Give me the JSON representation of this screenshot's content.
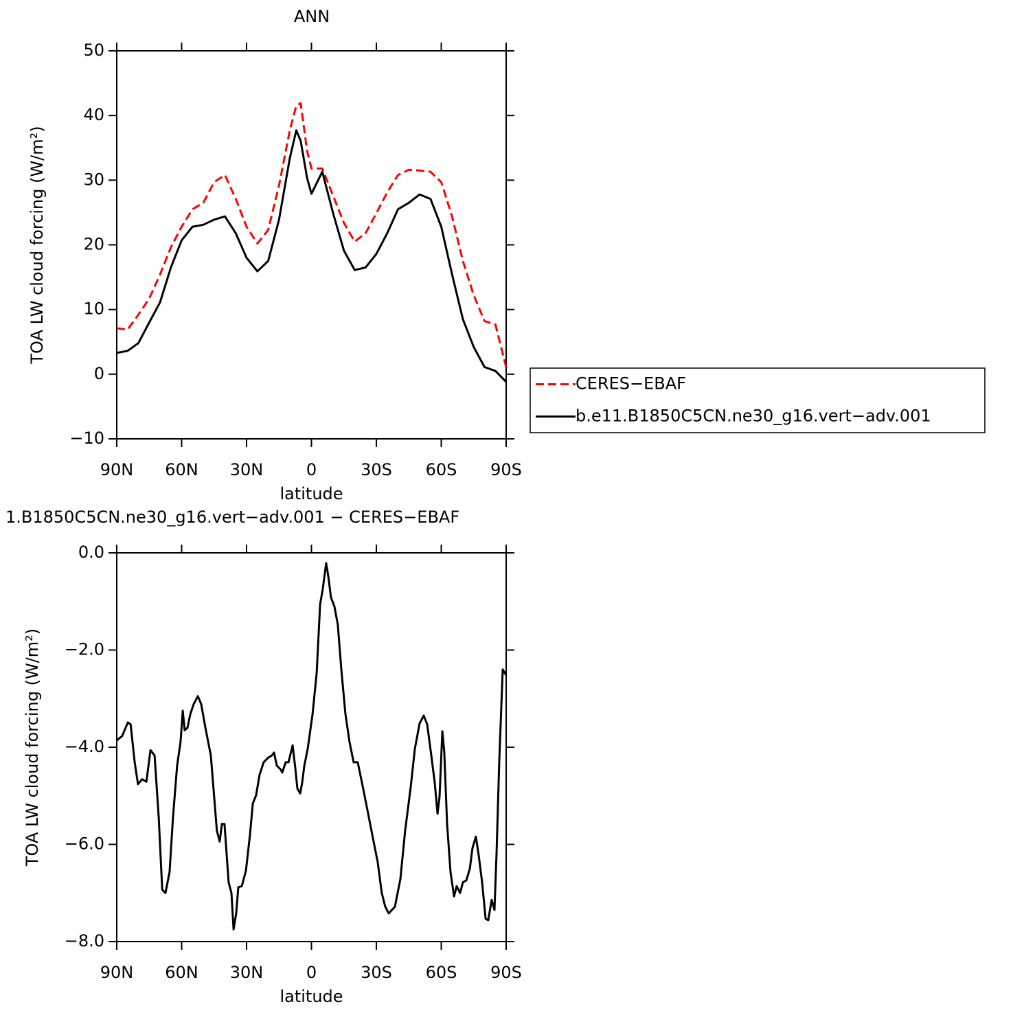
{
  "chart_data": [
    {
      "type": "line",
      "title": "ANN",
      "x_label": "latitude",
      "y_label": "TOA LW cloud forcing (W/m²)",
      "x": [
        90,
        85,
        80,
        75,
        70,
        65,
        60,
        55,
        50,
        45,
        40,
        35,
        30,
        25,
        20,
        15,
        10,
        7,
        5,
        2,
        0,
        -5,
        -10,
        -15,
        -20,
        -25,
        -30,
        -35,
        -40,
        -45,
        -50,
        -55,
        -60,
        -65,
        -70,
        -75,
        -80,
        -85,
        -90
      ],
      "series": [
        {
          "name": "CERES−EBAF",
          "color": "#ff0000",
          "dashed": true,
          "values": [
            7.1,
            6.9,
            9.2,
            11.7,
            15.4,
            19.6,
            22.8,
            25.5,
            26.5,
            29.7,
            30.8,
            27.1,
            22.8,
            20.2,
            22.3,
            29.2,
            37.7,
            41.5,
            41.9,
            34.5,
            31.8,
            31.8,
            27.6,
            23.4,
            20.5,
            21.8,
            24.9,
            28.1,
            30.8,
            31.6,
            31.5,
            31.3,
            29.7,
            24.4,
            17.5,
            12.2,
            8.2,
            7.7,
            1.1
          ]
        },
        {
          "name": "b.e11.B1850C5CN.ne30_g16.vert−adv.001",
          "color": "#000000",
          "dashed": false,
          "values": [
            3.3,
            3.6,
            4.8,
            8.0,
            11.1,
            16.5,
            20.7,
            22.8,
            23.1,
            23.9,
            24.4,
            21.8,
            18.0,
            15.9,
            17.5,
            23.9,
            33.4,
            37.7,
            36.1,
            30.3,
            27.9,
            31.3,
            24.9,
            19.1,
            16.1,
            16.5,
            18.6,
            21.8,
            25.5,
            26.5,
            27.8,
            27.1,
            22.8,
            15.4,
            8.5,
            4.2,
            1.1,
            0.5,
            -1.2
          ]
        }
      ],
      "xlim": [
        90,
        -90
      ],
      "xticks": [
        {
          "value": 90,
          "label": "90N"
        },
        {
          "value": 60,
          "label": "60N"
        },
        {
          "value": 30,
          "label": "30N"
        },
        0,
        {
          "value": -30,
          "label": "30S"
        },
        {
          "value": -60,
          "label": "60S"
        },
        {
          "value": -90,
          "label": "90S"
        }
      ],
      "ylim": [
        -10,
        50
      ],
      "yticks": [
        {
          "value": -10,
          "label": "−10"
        },
        0,
        10,
        20,
        30,
        40,
        50
      ],
      "legend": "right"
    },
    {
      "type": "line",
      "title": "1.B1850C5CN.ne30_g16.vert−adv.001 − CERES−EBAF",
      "x_label": "latitude",
      "y_label": "TOA LW cloud forcing (W/m²)",
      "x": [
        90,
        87.5,
        84.9,
        83.6,
        81.7,
        80.2,
        78.3,
        76.3,
        74.4,
        72.5,
        70.6,
        69.0,
        67.5,
        65.6,
        64.0,
        62.1,
        60.5,
        59.5,
        58.6,
        57.3,
        56.0,
        54.4,
        52.5,
        51.0,
        49.0,
        46.5,
        43.7,
        42.4,
        41.4,
        40.2,
        38.3,
        37.0,
        36.0,
        34.8,
        33.8,
        32.2,
        30.3,
        28.4,
        27.1,
        25.6,
        24.0,
        22.1,
        19.9,
        18.3,
        17.3,
        16.0,
        14.4,
        13.5,
        11.9,
        10.6,
        8.7,
        7.5,
        6.5,
        5.2,
        4.3,
        3.3,
        1.7,
        -0.5,
        -2.4,
        -4.0,
        -5.2,
        -6.8,
        -7.8,
        -9.0,
        -10.6,
        -12.2,
        -13.8,
        -15.7,
        -17.6,
        -19.5,
        -21.4,
        -23.7,
        -25.9,
        -28.4,
        -30.6,
        -32.5,
        -34.1,
        -35.7,
        -38.6,
        -41.1,
        -43.3,
        -45.9,
        -47.8,
        -50.0,
        -51.9,
        -53.5,
        -55.4,
        -57.0,
        -58.3,
        -59.2,
        -60.5,
        -61.4,
        -62.7,
        -64.3,
        -65.9,
        -67.1,
        -68.7,
        -70.0,
        -71.6,
        -73.2,
        -74.4,
        -76.0,
        -77.3,
        -78.9,
        -80.5,
        -81.7,
        -83.3,
        -84.6,
        -85.6,
        -86.8,
        -88.4,
        -90
      ],
      "values": [
        -3.86,
        -3.77,
        -3.49,
        -3.53,
        -4.31,
        -4.76,
        -4.66,
        -4.71,
        -4.06,
        -4.17,
        -5.44,
        -6.93,
        -7.0,
        -6.57,
        -5.44,
        -4.38,
        -3.89,
        -3.25,
        -3.65,
        -3.6,
        -3.32,
        -3.11,
        -2.95,
        -3.11,
        -3.6,
        -4.17,
        -5.72,
        -5.94,
        -5.58,
        -5.58,
        -6.78,
        -7.0,
        -7.75,
        -7.42,
        -6.88,
        -6.86,
        -6.54,
        -5.8,
        -5.16,
        -4.99,
        -4.57,
        -4.31,
        -4.21,
        -4.17,
        -4.11,
        -4.38,
        -4.45,
        -4.52,
        -4.31,
        -4.31,
        -3.96,
        -4.42,
        -4.85,
        -4.95,
        -4.73,
        -4.38,
        -4.03,
        -3.32,
        -2.47,
        -1.06,
        -0.75,
        -0.21,
        -0.49,
        -0.92,
        -1.1,
        -1.48,
        -2.4,
        -3.32,
        -3.89,
        -4.31,
        -4.31,
        -4.81,
        -5.3,
        -5.87,
        -6.36,
        -7.0,
        -7.28,
        -7.42,
        -7.28,
        -6.71,
        -5.72,
        -4.81,
        -4.03,
        -3.51,
        -3.35,
        -3.53,
        -4.17,
        -4.73,
        -5.37,
        -5.02,
        -3.67,
        -4.1,
        -5.58,
        -6.57,
        -7.07,
        -6.86,
        -7.0,
        -6.78,
        -6.74,
        -6.5,
        -6.08,
        -5.84,
        -6.22,
        -6.78,
        -7.53,
        -7.56,
        -7.14,
        -7.35,
        -6.15,
        -4.31,
        -2.4,
        -2.52
      ],
      "color": "#000000",
      "xlim": [
        90,
        -90
      ],
      "xticks": [
        {
          "value": 90,
          "label": "90N"
        },
        {
          "value": 60,
          "label": "60N"
        },
        {
          "value": 30,
          "label": "30N"
        },
        0,
        {
          "value": -30,
          "label": "30S"
        },
        {
          "value": -60,
          "label": "60S"
        },
        {
          "value": -90,
          "label": "90S"
        }
      ],
      "ylim": [
        -8,
        0
      ],
      "yticks": [
        {
          "value": -8,
          "label": "−8.0"
        },
        {
          "value": -6,
          "label": "−6.0"
        },
        {
          "value": -4,
          "label": "−4.0"
        },
        {
          "value": -2,
          "label": "−2.0"
        },
        {
          "value": 0,
          "label": "0.0"
        }
      ]
    }
  ]
}
